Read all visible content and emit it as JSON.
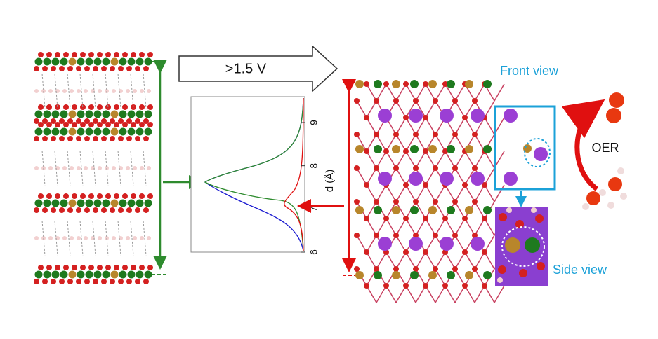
{
  "arrow_label": ">1.5 V",
  "inset_plot": {
    "axis_label": "d (Å)",
    "ylim": [
      6,
      9.6
    ],
    "yticks": [
      6,
      7,
      8,
      9
    ]
  },
  "labels": {
    "front_view": "Front view",
    "side_view": "Side view",
    "reaction": "OER"
  }
}
